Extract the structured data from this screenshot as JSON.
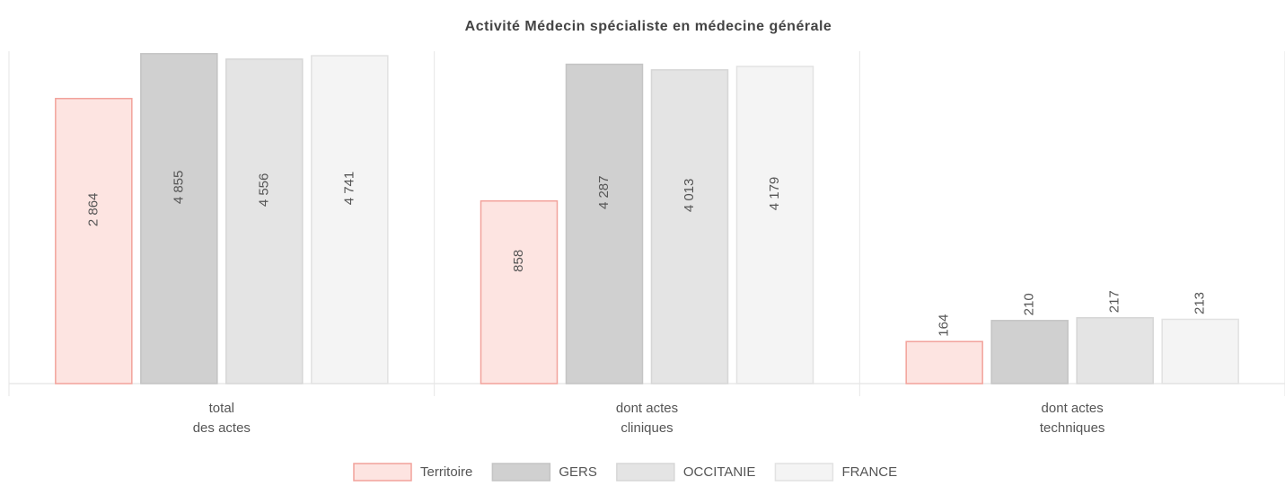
{
  "chart_data": {
    "type": "bar",
    "title": "Activité Médecin spécialiste en médecine générale",
    "categories": [
      [
        "total",
        "des actes"
      ],
      [
        "dont actes",
        "cliniques"
      ],
      [
        "dont actes",
        "techniques"
      ]
    ],
    "log_scale": true,
    "ylim": [
      100,
      5000
    ],
    "series": [
      {
        "name": "Territoire",
        "color": "#fde4e1",
        "stroke": "#f2a29b",
        "values": [
          2864,
          858,
          164
        ],
        "value_labels": [
          "2 864",
          "858",
          "164"
        ]
      },
      {
        "name": "GERS",
        "color": "#d0d0d0",
        "stroke": "#c4c4c4",
        "values": [
          4855,
          4287,
          210
        ],
        "value_labels": [
          "4 855",
          "4 287",
          "210"
        ]
      },
      {
        "name": "OCCITANIE",
        "color": "#e4e4e4",
        "stroke": "#d6d6d6",
        "values": [
          4556,
          4013,
          217
        ],
        "value_labels": [
          "4 556",
          "4 013",
          "217"
        ]
      },
      {
        "name": "FRANCE",
        "color": "#f4f4f4",
        "stroke": "#e2e2e2",
        "values": [
          4741,
          4179,
          213
        ],
        "value_labels": [
          "4 741",
          "4 179",
          "213"
        ]
      }
    ]
  }
}
